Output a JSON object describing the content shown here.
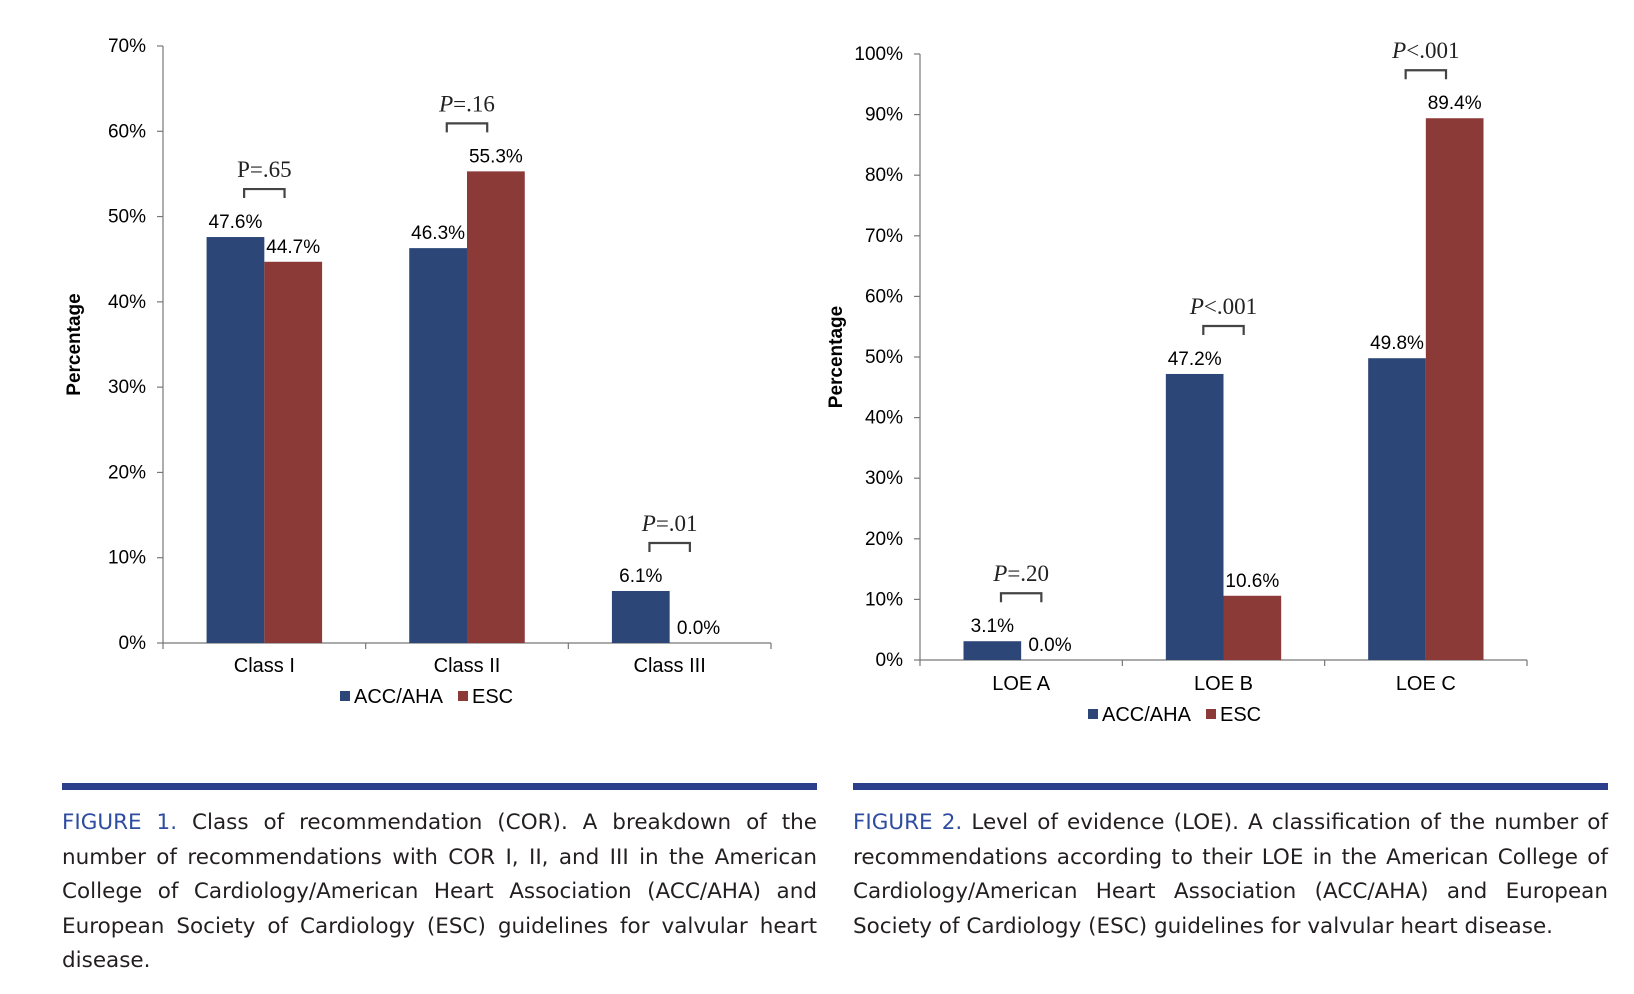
{
  "colors": {
    "acc_aha": "#2b4677",
    "esc": "#8b3a38",
    "caption_label": "#2f4da0",
    "rule": "#2b3f8c"
  },
  "figures": [
    {
      "label": "FIGURE 1.",
      "caption": " Class of recommendation (COR). A breakdown of the number of recommendations with COR I, II, and III in the American College of Cardiology/American Heart Association (ACC/AHA) and European Society of Cardiology (ESC) guidelines for valvular heart disease."
    },
    {
      "label": "FIGURE 2.",
      "caption": " Level of evidence (LOE). A classification of the number of recommendations according to their LOE in the American College of Cardiology/American Heart Association (ACC/AHA) and European Society of Cardiology (ESC) guidelines for valvular heart disease."
    }
  ],
  "chart_data": [
    {
      "type": "bar",
      "title": "",
      "xlabel": "",
      "ylabel": "Percentage",
      "ylim": [
        0,
        70
      ],
      "yticks": [
        "0%",
        "10%",
        "20%",
        "30%",
        "40%",
        "50%",
        "60%",
        "70%"
      ],
      "ytick_values": [
        0,
        10,
        20,
        30,
        40,
        50,
        60,
        70
      ],
      "categories": [
        "Class I",
        "Class II",
        "Class III"
      ],
      "series": [
        {
          "name": "ACC/AHA",
          "values": [
            47.6,
            46.3,
            6.1
          ],
          "labels": [
            "47.6%",
            "46.3%",
            "6.1%"
          ]
        },
        {
          "name": "ESC",
          "values": [
            44.7,
            55.3,
            0.0
          ],
          "labels": [
            "44.7%",
            "55.3%",
            "0.0%"
          ]
        }
      ],
      "p_values": [
        {
          "prefix": "P",
          "rest": "=.65",
          "italic": false
        },
        {
          "prefix": "P",
          "rest": "=.16",
          "italic": true
        },
        {
          "prefix": "P",
          "rest": "=.01",
          "italic": true
        }
      ],
      "legend": "bottom",
      "grid": false
    },
    {
      "type": "bar",
      "title": "",
      "xlabel": "",
      "ylabel": "Percentage",
      "ylim": [
        0,
        100
      ],
      "yticks": [
        "0%",
        "10%",
        "20%",
        "30%",
        "40%",
        "50%",
        "60%",
        "70%",
        "80%",
        "90%",
        "100%"
      ],
      "ytick_values": [
        0,
        10,
        20,
        30,
        40,
        50,
        60,
        70,
        80,
        90,
        100
      ],
      "categories": [
        "LOE A",
        "LOE B",
        "LOE C"
      ],
      "series": [
        {
          "name": "ACC/AHA",
          "values": [
            3.1,
            47.2,
            49.8
          ],
          "labels": [
            "3.1%",
            "47.2%",
            "49.8%"
          ]
        },
        {
          "name": "ESC",
          "values": [
            0.0,
            10.6,
            89.4
          ],
          "labels": [
            "0.0%",
            "10.6%",
            "89.4%"
          ]
        }
      ],
      "p_values": [
        {
          "prefix": "P",
          "rest": "=.20",
          "italic": true
        },
        {
          "prefix": "P",
          "rest": "<.001",
          "italic": true
        },
        {
          "prefix": "P",
          "rest": "<.001",
          "italic": true
        }
      ],
      "legend": "bottom",
      "grid": false
    }
  ]
}
